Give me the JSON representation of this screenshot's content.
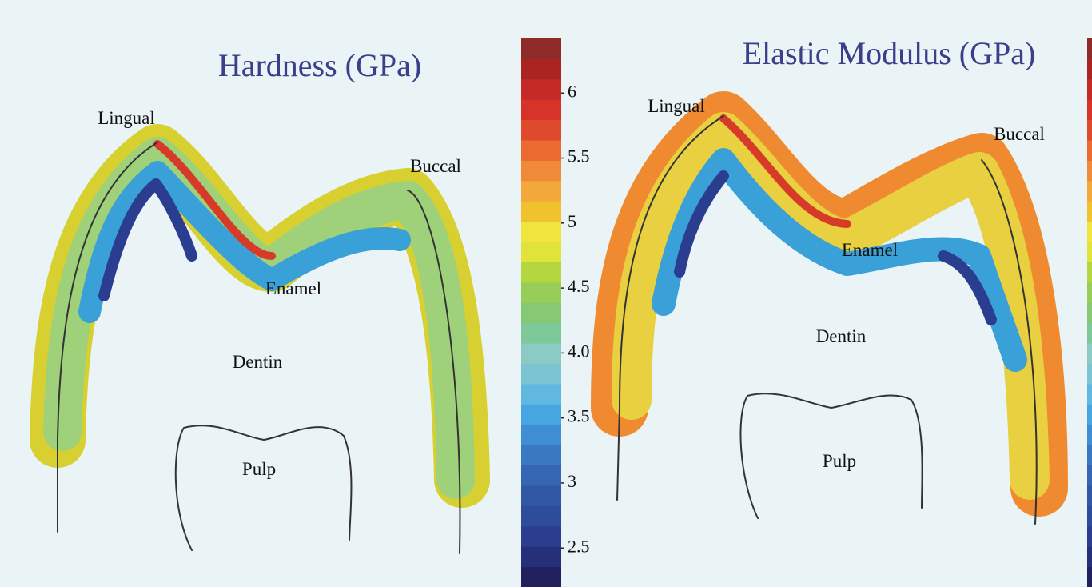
{
  "panels": [
    {
      "title": "Hardness (GPa)",
      "labels": [
        "Lingual",
        "Buccal",
        "Enamel",
        "Dentin",
        "Pulp"
      ]
    },
    {
      "title": "Elastic Modulus (GPa)",
      "labels": [
        "Lingual",
        "Buccal",
        "Enamel",
        "Dentin",
        "Pulp"
      ]
    }
  ],
  "colorbar": {
    "range": [
      2.2,
      6.42
    ],
    "ticks": [
      2.5,
      3,
      3.5,
      {
        "value": 4,
        "label": "4.0"
      },
      4.5,
      5,
      5.5,
      6
    ]
  }
}
